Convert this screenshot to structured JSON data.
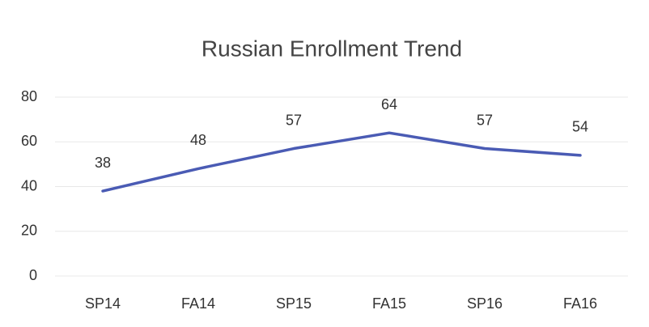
{
  "chart_data": {
    "type": "line",
    "title": "Russian Enrollment Trend",
    "categories": [
      "SP14",
      "FA14",
      "SP15",
      "FA15",
      "SP16",
      "FA16"
    ],
    "values": [
      38,
      48,
      57,
      64,
      57,
      54
    ],
    "color": "#4a5bb4",
    "ylim": [
      0,
      80
    ],
    "yticks": [
      0,
      20,
      40,
      60,
      80
    ],
    "grid": true
  }
}
